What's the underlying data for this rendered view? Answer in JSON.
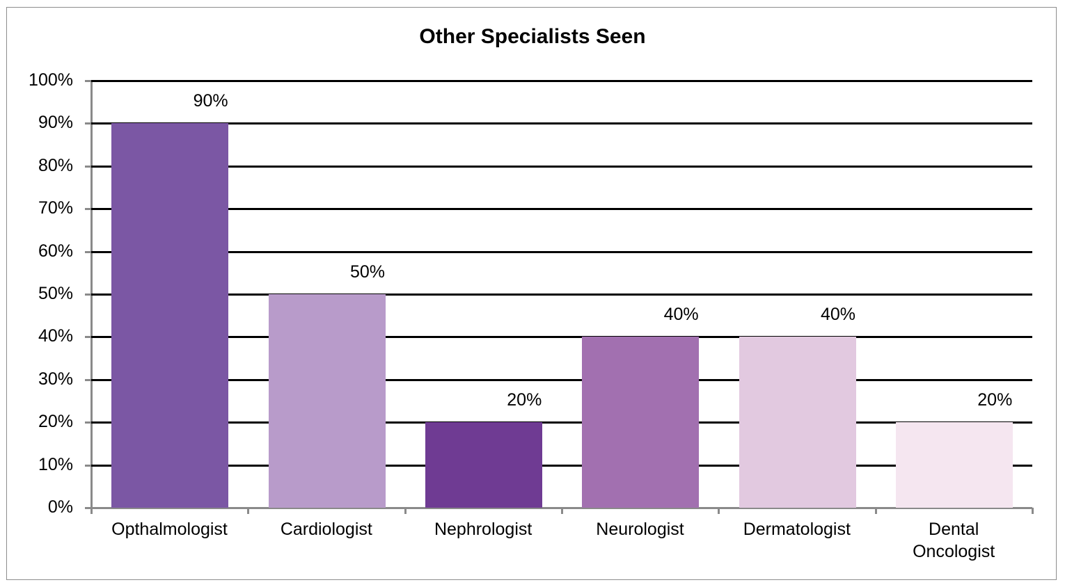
{
  "chart_data": {
    "type": "bar",
    "title": "Other Specialists Seen",
    "xlabel": "",
    "ylabel": "",
    "categories": [
      "Opthalmologist",
      "Cardiologist",
      "Nephrologist",
      "Neurologist",
      "Dermatologist",
      "Dental Oncologist"
    ],
    "values": [
      90,
      50,
      20,
      40,
      40,
      20
    ],
    "value_labels": [
      "90%",
      "50%",
      "20%",
      "40%",
      "40%",
      "20%"
    ],
    "colors": [
      "#7b57a4",
      "#b89bca",
      "#6f3b93",
      "#a270b0",
      "#e2c9e0",
      "#f5e6f0"
    ],
    "ylim": [
      0,
      100
    ],
    "yticks": [
      "0%",
      "10%",
      "20%",
      "30%",
      "40%",
      "50%",
      "60%",
      "70%",
      "80%",
      "90%",
      "100%"
    ],
    "grid": true,
    "legend": "none"
  },
  "categories_display": [
    {
      "line1": "Opthalmologist",
      "line2": ""
    },
    {
      "line1": "Cardiologist",
      "line2": ""
    },
    {
      "line1": "Nephrologist",
      "line2": ""
    },
    {
      "line1": "Neurologist",
      "line2": ""
    },
    {
      "line1": "Dermatologist",
      "line2": ""
    },
    {
      "line1": "Dental",
      "line2": "Oncologist"
    }
  ]
}
